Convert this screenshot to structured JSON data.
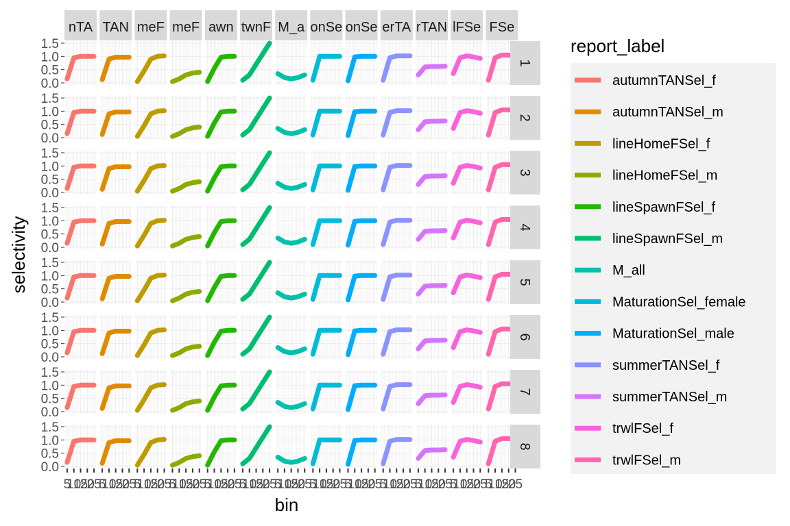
{
  "chart_data": {
    "type": "line",
    "xlabel": "bin",
    "ylabel": "selectivity",
    "ylim": [
      0,
      1.5
    ],
    "y_ticks": [
      "0.0",
      "0.5",
      "1.0",
      "1.5"
    ],
    "x_ticks": [
      "5",
      "10",
      "15",
      "20",
      "25"
    ],
    "x_values": [
      5,
      10,
      15,
      20,
      25
    ],
    "grid": true,
    "legend_position": "right",
    "legend_title": "report_label",
    "column_strips": [
      "autumnTANSel_f",
      "autumnTANSel_m",
      "lineHomeFSel_f",
      "lineHomeFSel_m",
      "lineSpawnFSel_f",
      "lineSpawnFSel_m",
      "M_all",
      "MaturationSel_female",
      "MaturationSel_male",
      "summerTANSel_f",
      "summerTANSel_m",
      "trwlFSel_f",
      "trwlFSel_m"
    ],
    "column_strip_visible": [
      "nTA",
      "TAN",
      "meF",
      "meF",
      "awn",
      "twnF",
      "M_a",
      "onSe",
      "onSe",
      "erTA",
      "rTAN",
      "lFSe",
      "FSe"
    ],
    "row_strips": [
      "1",
      "2",
      "3",
      "4",
      "5",
      "6",
      "7",
      "8"
    ],
    "series": [
      {
        "name": "autumnTANSel_f",
        "color": "#F8766D",
        "values": [
          0.15,
          0.95,
          1.0,
          1.0,
          1.0
        ]
      },
      {
        "name": "autumnTANSel_m",
        "color": "#E18A00",
        "values": [
          0.12,
          0.9,
          0.97,
          0.97,
          0.97
        ]
      },
      {
        "name": "lineHomeFSel_f",
        "color": "#BE9C00",
        "values": [
          0.05,
          0.45,
          0.9,
          1.0,
          1.02
        ]
      },
      {
        "name": "lineHomeFSel_m",
        "color": "#8CAB00",
        "values": [
          0.05,
          0.15,
          0.3,
          0.37,
          0.4
        ]
      },
      {
        "name": "lineSpawnFSel_f",
        "color": "#24B700",
        "values": [
          0.05,
          0.55,
          0.97,
          1.0,
          1.0
        ]
      },
      {
        "name": "lineSpawnFSel_m",
        "color": "#00BE70",
        "values": [
          0.1,
          0.3,
          0.7,
          1.1,
          1.5
        ]
      },
      {
        "name": "M_all",
        "color": "#00C1AB",
        "values": [
          0.35,
          0.2,
          0.15,
          0.2,
          0.3
        ]
      },
      {
        "name": "MaturationSel_female",
        "color": "#00BBDA",
        "values": [
          0.1,
          1.0,
          1.0,
          1.0,
          1.0
        ]
      },
      {
        "name": "MaturationSel_male",
        "color": "#00ACFC",
        "values": [
          0.08,
          0.98,
          1.0,
          1.0,
          1.0
        ]
      },
      {
        "name": "summerTANSel_f",
        "color": "#8B93FF",
        "values": [
          0.1,
          0.95,
          1.02,
          1.02,
          1.02
        ]
      },
      {
        "name": "summerTANSel_m",
        "color": "#D575FE",
        "values": [
          0.3,
          0.6,
          0.62,
          0.62,
          0.63
        ]
      },
      {
        "name": "trwlFSel_f",
        "color": "#F962DD",
        "values": [
          0.35,
          0.95,
          1.02,
          0.98,
          0.92
        ]
      },
      {
        "name": "trwlFSel_m",
        "color": "#FF65AC",
        "values": [
          0.1,
          0.95,
          1.05,
          1.05,
          1.02
        ]
      }
    ]
  }
}
